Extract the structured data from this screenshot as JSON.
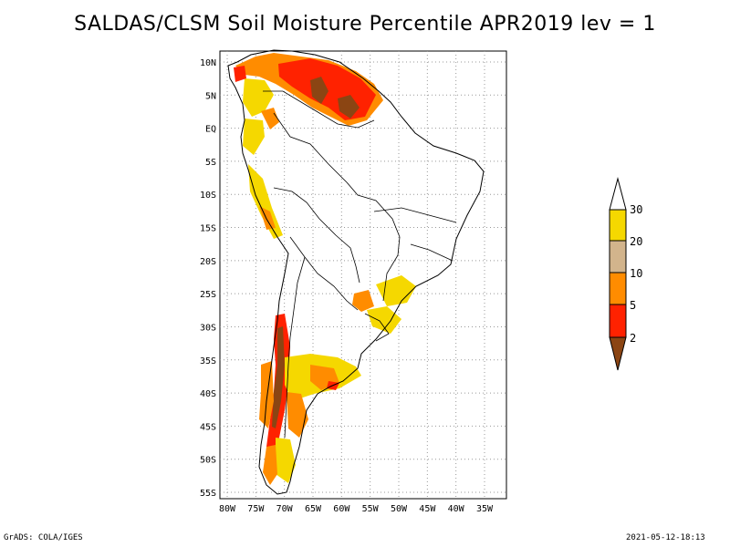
{
  "title": "SALDAS/CLSM Soil Moisture Percentile APR2019 lev = 1",
  "footer": {
    "left": "GrADS: COLA/IGES",
    "right": "2021-05-12-18:13"
  },
  "axes": {
    "lat_labels": [
      "10N",
      "5N",
      "EQ",
      "5S",
      "10S",
      "15S",
      "20S",
      "25S",
      "30S",
      "35S",
      "40S",
      "45S",
      "50S",
      "55S"
    ],
    "lon_labels": [
      "80W",
      "75W",
      "70W",
      "65W",
      "60W",
      "55W",
      "50W",
      "45W",
      "40W",
      "35W"
    ],
    "lat_values": [
      10,
      5,
      0,
      -5,
      -10,
      -15,
      -20,
      -25,
      -30,
      -35,
      -40,
      -45,
      -50,
      -55
    ],
    "lon_values": [
      -80,
      -75,
      -70,
      -65,
      -60,
      -55,
      -50,
      -45,
      -40,
      -35
    ],
    "grid": true
  },
  "legend": {
    "labels": [
      "30",
      "20",
      "10",
      "5",
      "2"
    ],
    "colors": [
      "#ffffff",
      "#f5d800",
      "#d2b48c",
      "#ff8c00",
      "#ff2200",
      "#8b4513"
    ]
  }
}
